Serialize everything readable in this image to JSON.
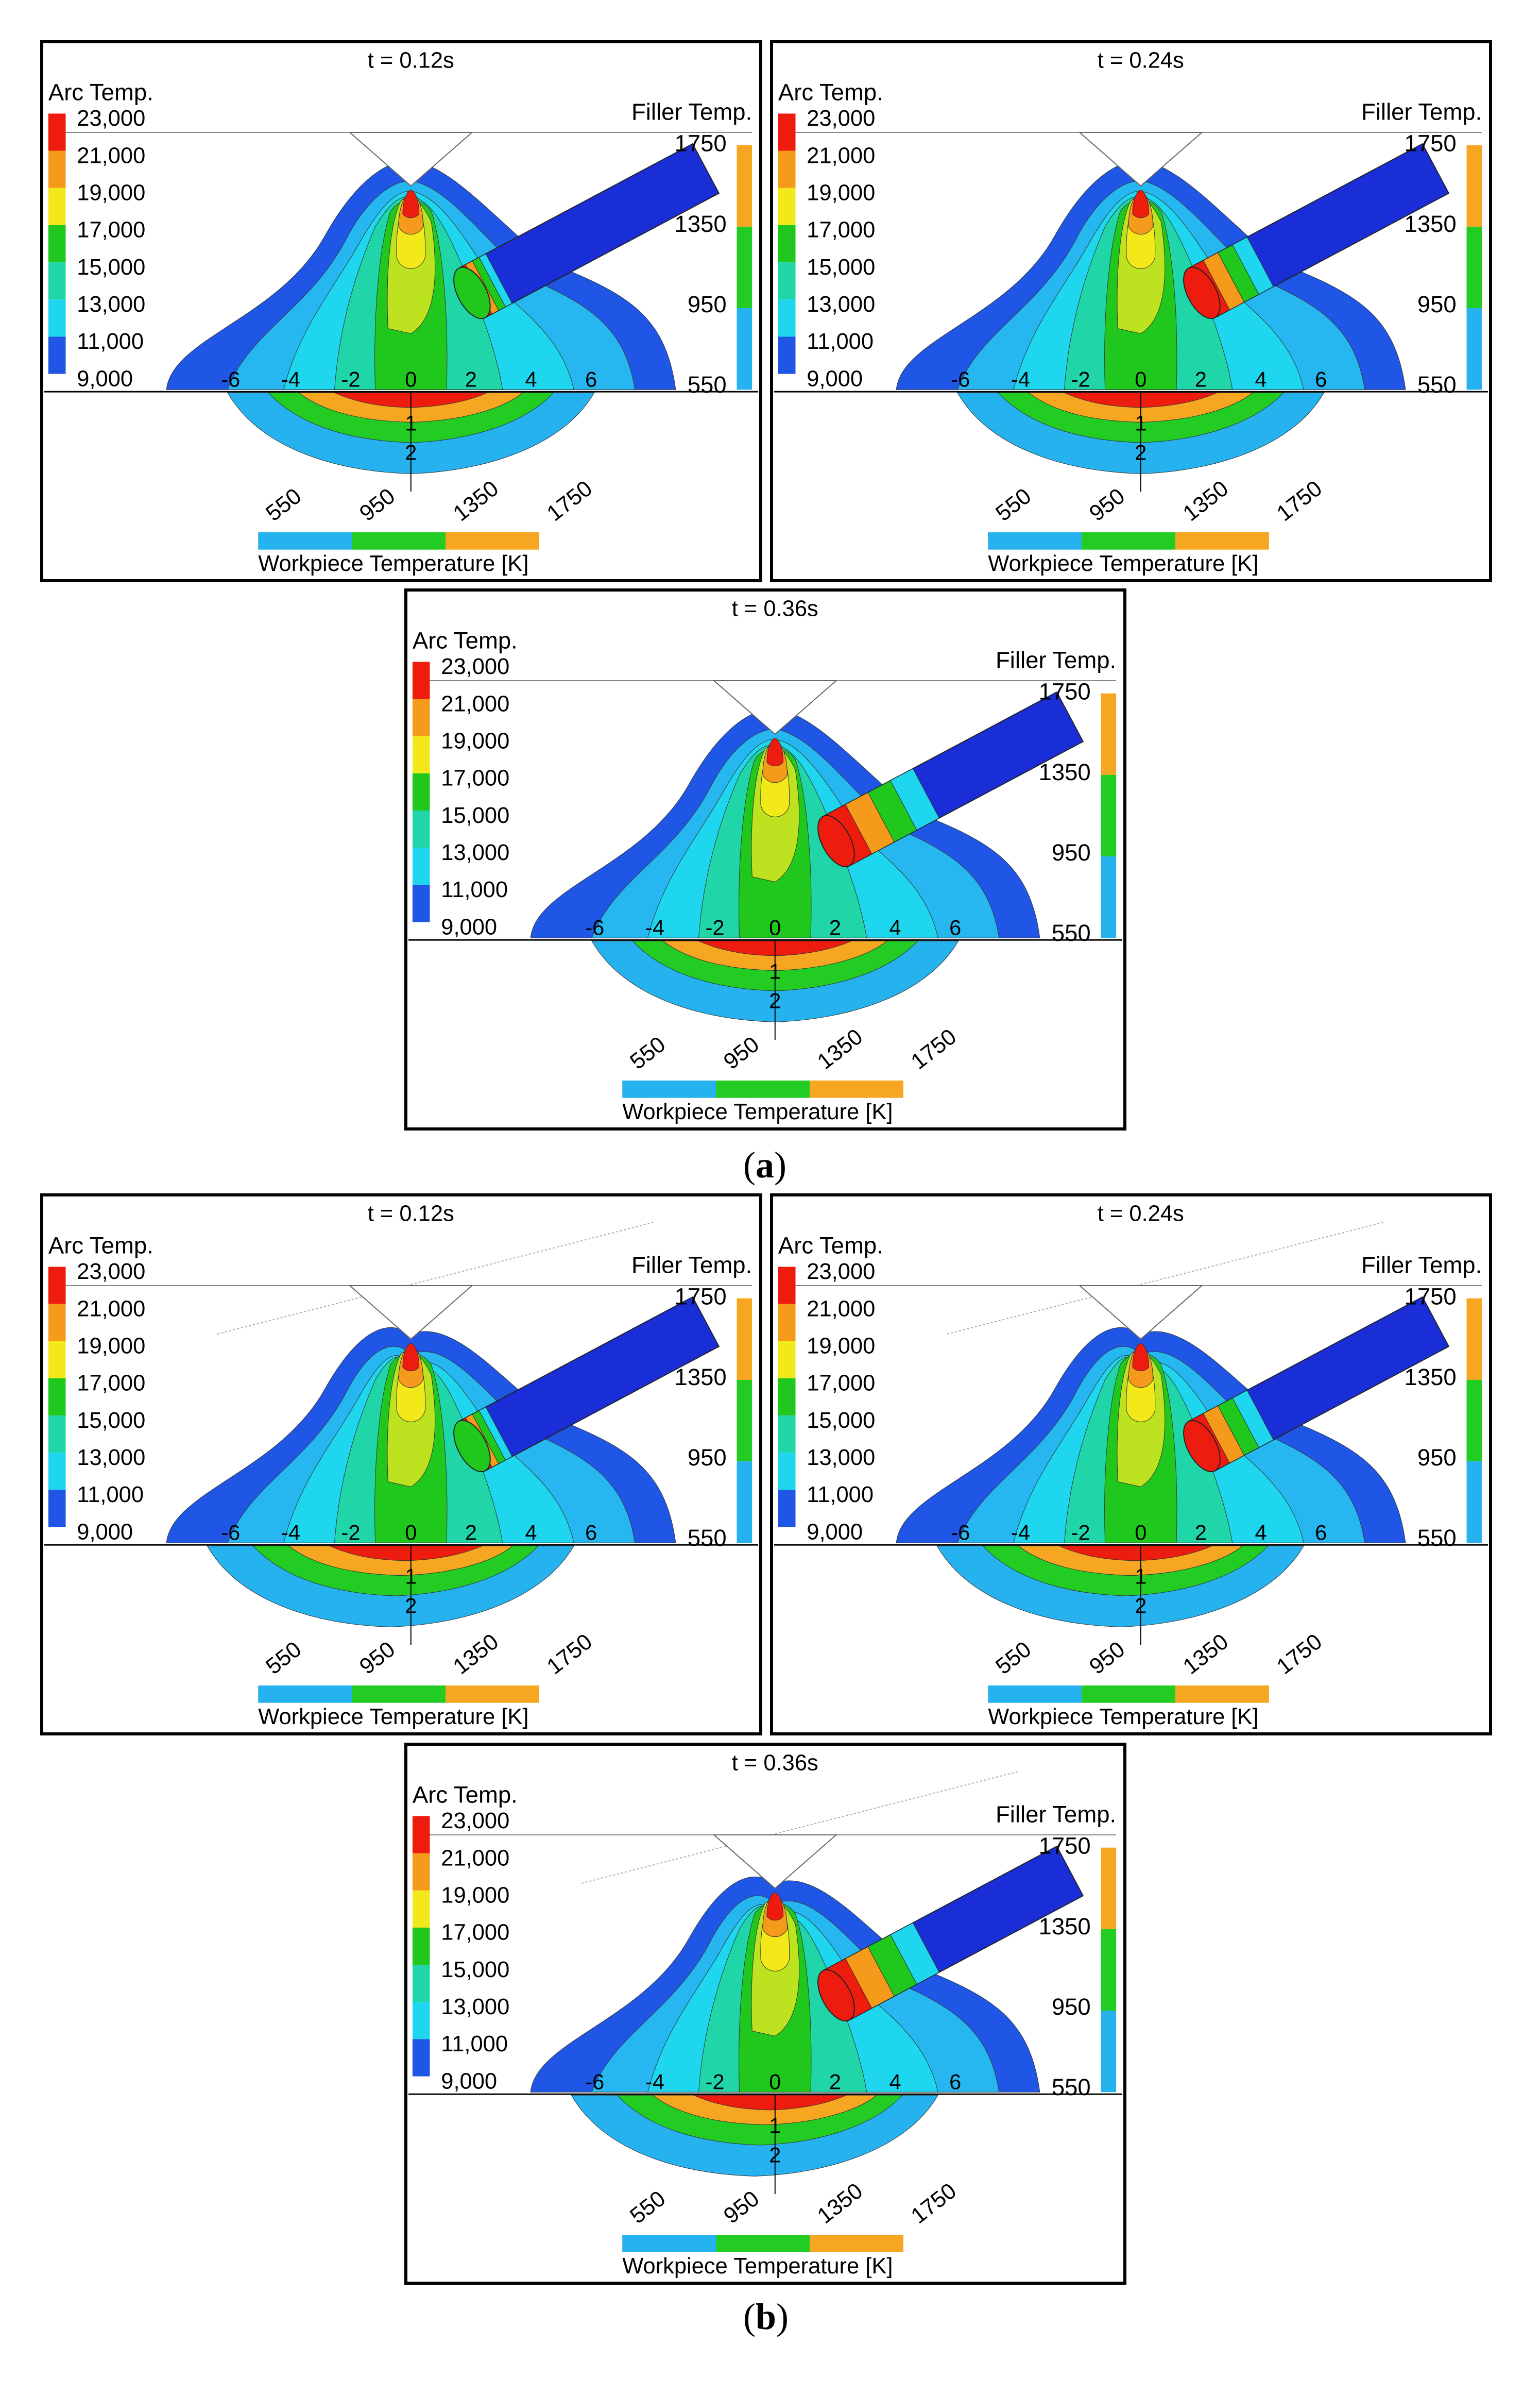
{
  "colors": {
    "red": "#ee1b0f",
    "orange": "#f59a1a",
    "yellow": "#f3e81a",
    "yellowgreen": "#bde21f",
    "green": "#20c81e",
    "teal": "#20d6a8",
    "cyan": "#1ed6ee",
    "sky": "#26b6f0",
    "blue": "#1f56e6",
    "darkblue": "#1a2ed8",
    "wp_sky": "#25b2ee",
    "wp_green": "#22cc22",
    "wp_orange": "#f7a621"
  },
  "legends": {
    "arc_title": "Arc Temp.",
    "arc_ticks": [
      "23,000",
      "21,000",
      "19,000",
      "17,000",
      "15,000",
      "13,000",
      "11,000",
      "9,000"
    ],
    "filler_title": "Filler Temp.",
    "filler_ticks": [
      "1750",
      "1350",
      "950",
      "550"
    ],
    "workpiece_title": "Workpiece Temperature [K]",
    "workpiece_ticks": [
      "550",
      "950",
      "1350",
      "1750"
    ]
  },
  "axis": {
    "x_ticks": [
      "-6",
      "-4",
      "-2",
      "0",
      "2",
      "4",
      "6"
    ],
    "y_ticks": [
      "1",
      "2"
    ]
  },
  "groups": [
    {
      "caption_letter": "a",
      "panels": [
        {
          "title": "t = 0.12s",
          "molten_segments": 1
        },
        {
          "title": "t = 0.24s",
          "molten_segments": 2
        },
        {
          "title": "t = 0.36s",
          "molten_segments": 3
        }
      ]
    },
    {
      "caption_letter": "b",
      "panels": [
        {
          "title": "t = 0.12s",
          "molten_segments": 1
        },
        {
          "title": "t = 0.24s",
          "molten_segments": 2
        },
        {
          "title": "t = 0.36s",
          "molten_segments": 3
        }
      ]
    }
  ]
}
